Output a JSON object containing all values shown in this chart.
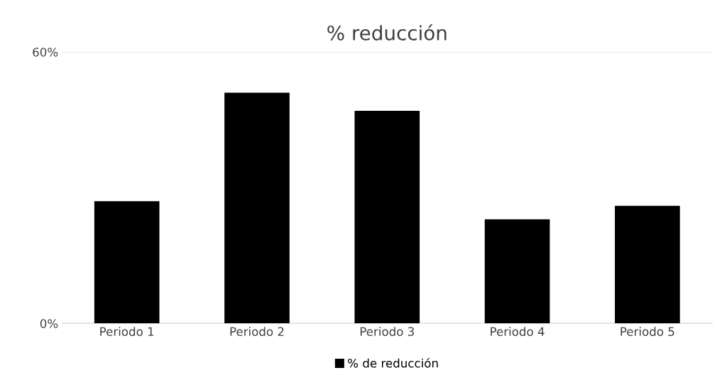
{
  "chart_data": {
    "type": "bar",
    "title": "% reducción",
    "categories": [
      "Periodo 1",
      "Periodo 2",
      "Periodo 3",
      "Periodo 4",
      "Periodo 5"
    ],
    "series": [
      {
        "name": "% de reducción",
        "color": "#000000",
        "values": [
          27,
          51,
          47,
          23,
          26
        ]
      }
    ],
    "ylim": [
      0,
      60
    ],
    "yticks": [
      {
        "value": 0,
        "label": "0%"
      },
      {
        "value": 60,
        "label": "60%"
      }
    ],
    "grid": "y",
    "legend": "bottom"
  }
}
